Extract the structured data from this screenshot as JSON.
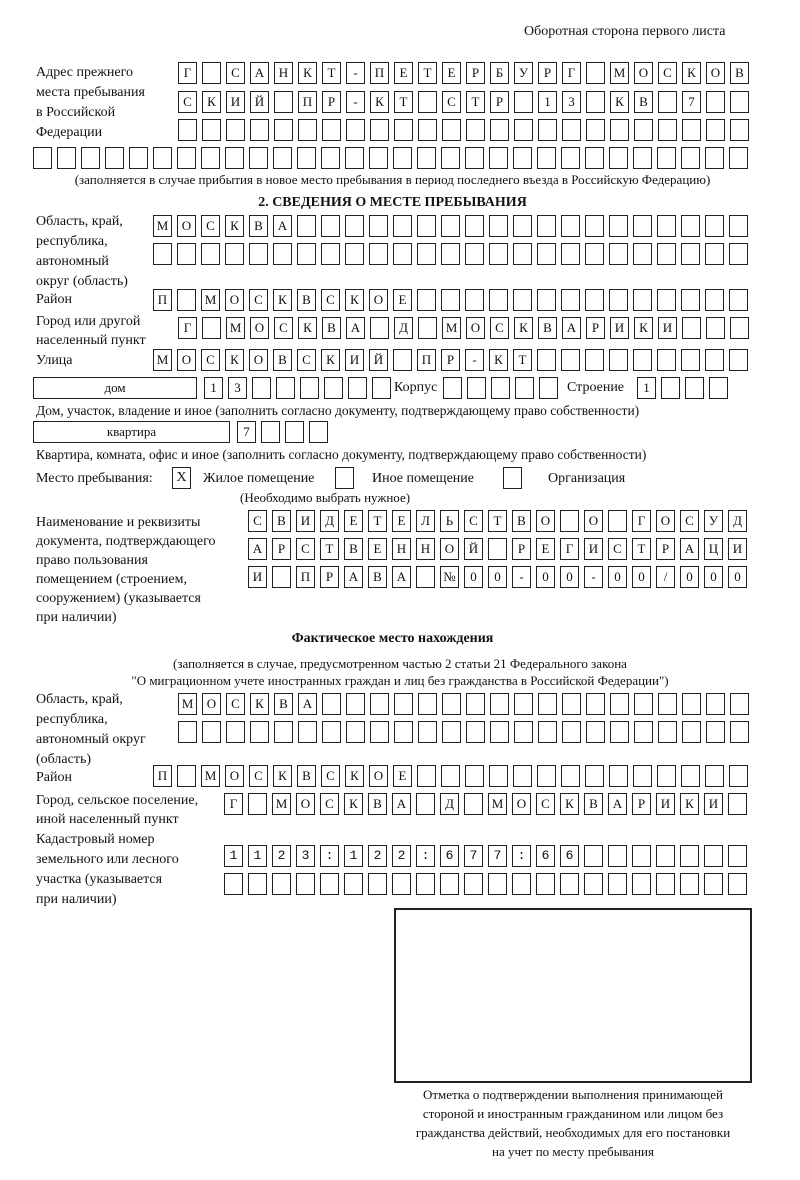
{
  "page_header": "Оборотная сторона первого листа",
  "previous_address": {
    "label": [
      "Адрес прежнего",
      "места пребывания",
      "в Российской",
      "Федерации"
    ],
    "rows": [
      "Г САНКТ-ПЕТЕРБУРГ МОСКОВ",
      "СКИЙ ПР-КТ СТР 13 КВ 7",
      "",
      ""
    ],
    "note": "(заполняется в случае прибытия в новое место пребывания в период последнего въезда в Российскую Федерацию)"
  },
  "section2": {
    "title": "2. СВЕДЕНИЯ О МЕСТЕ ПРЕБЫВАНИЯ",
    "region_label": [
      "Область, край,",
      "республика,",
      "автономный",
      "округ (область)"
    ],
    "region_rows": [
      "МОСКВА",
      ""
    ],
    "district_label": "Район",
    "district": "П МОСКВСКОЕ",
    "city_label": [
      "Город или другой",
      "населенный пункт"
    ],
    "city": "Г МОСКВА Д МОСКВАРИКИ",
    "street_label": "Улица",
    "street": "МОСКОВСКИЙ ПР-КТ",
    "house_type": "дом",
    "house_number": "13",
    "korpus_label": "Корпус",
    "korpus": "",
    "building_label": "Строение",
    "building": "1",
    "house_note": "Дом, участок, владение и иное (заполнить согласно документу, подтверждающему право собственности)",
    "apartment_type": "квартира",
    "apartment_number": "7",
    "apartment_note": "Квартира, комната, офис и иное (заполнить согласно документу, подтверждающему право собственности)",
    "stay_place_label": "Место пребывания:",
    "stay_options": [
      {
        "label": "Жилое помещение",
        "mark": "X",
        "checked": true
      },
      {
        "label": "Иное помещение",
        "mark": "",
        "checked": false
      },
      {
        "label": "Организация",
        "mark": "",
        "checked": false
      }
    ],
    "stay_note": "(Необходимо выбрать нужное)",
    "document_label": [
      "Наименование и реквизиты",
      "документа, подтверждающего",
      "право пользования",
      "помещением (строением,",
      "сооружением) (указывается",
      "при наличии)"
    ],
    "document_rows": [
      "СВИДЕТЕЛЬСТВО О ГОСУД",
      "АРСТВЕННОЙ РЕГИСТРАЦИ",
      "И ПРАВА №00-00-00/000"
    ]
  },
  "actual_location": {
    "title": "Фактическое место нахождения",
    "note": [
      "(заполняется в случае, предусмотренном частью 2 статьи 21 Федерального закона",
      "\"О миграционном учете иностранных граждан и лиц без гражданства в Российской Федерации\")"
    ],
    "region_label": [
      "Область, край,",
      "республика,",
      "автономный округ",
      "(область)"
    ],
    "region_rows": [
      "МОСКВА",
      ""
    ],
    "district_label": "Район",
    "district": "П МОСКВСКОЕ",
    "city_label": [
      "Город, сельское поселение,",
      "иной населенный пункт"
    ],
    "city": "Г МОСКВА Д МОСКВАРИКИ",
    "cadastral_label": [
      "Кадастровый номер",
      "земельного или лесного",
      "участка (указывается",
      "при наличии)"
    ],
    "cadastral_rows": [
      "1123:122:677:66",
      ""
    ]
  },
  "confirmation": {
    "caption": [
      "Отметка о подтверждении выполнения принимающей",
      "стороной и иностранным гражданином или лицом без",
      "гражданства действий, необходимых для его постановки",
      "на учет по месту пребывания"
    ]
  }
}
